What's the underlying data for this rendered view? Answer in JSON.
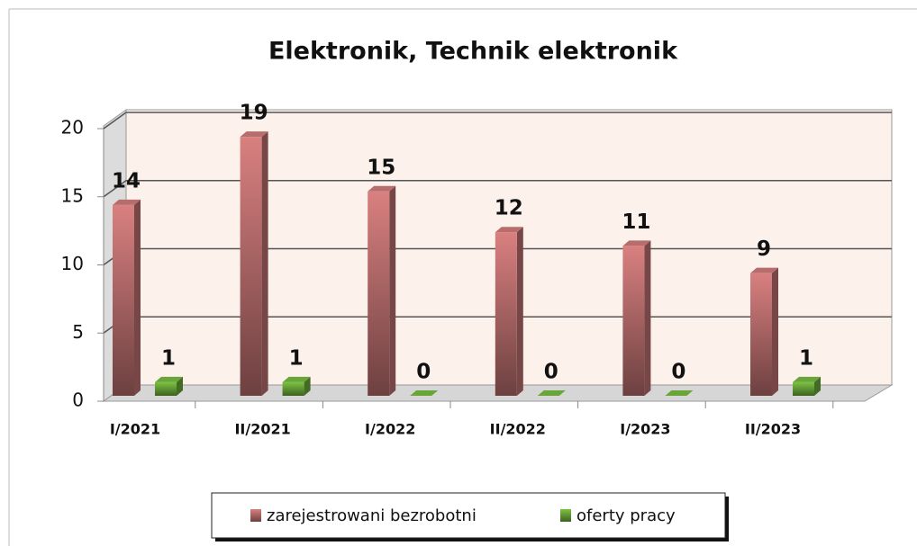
{
  "chart_data": {
    "type": "bar",
    "title": "Elektronik, Technik elektronik",
    "categories": [
      "I/2021",
      "II/2021",
      "I/2022",
      "II/2022",
      "I/2023",
      "II/2023"
    ],
    "series": [
      {
        "name": "zarejestrowani bezrobotni",
        "color": "#d98080",
        "values": [
          14,
          19,
          15,
          12,
          11,
          9
        ]
      },
      {
        "name": "oferty pracy",
        "color": "#7cc242",
        "values": [
          1,
          1,
          0,
          0,
          0,
          1
        ]
      }
    ],
    "ylim": [
      0,
      20
    ],
    "yticks": [
      0,
      5,
      10,
      15,
      20
    ],
    "grid": true,
    "legend": "bottom"
  }
}
